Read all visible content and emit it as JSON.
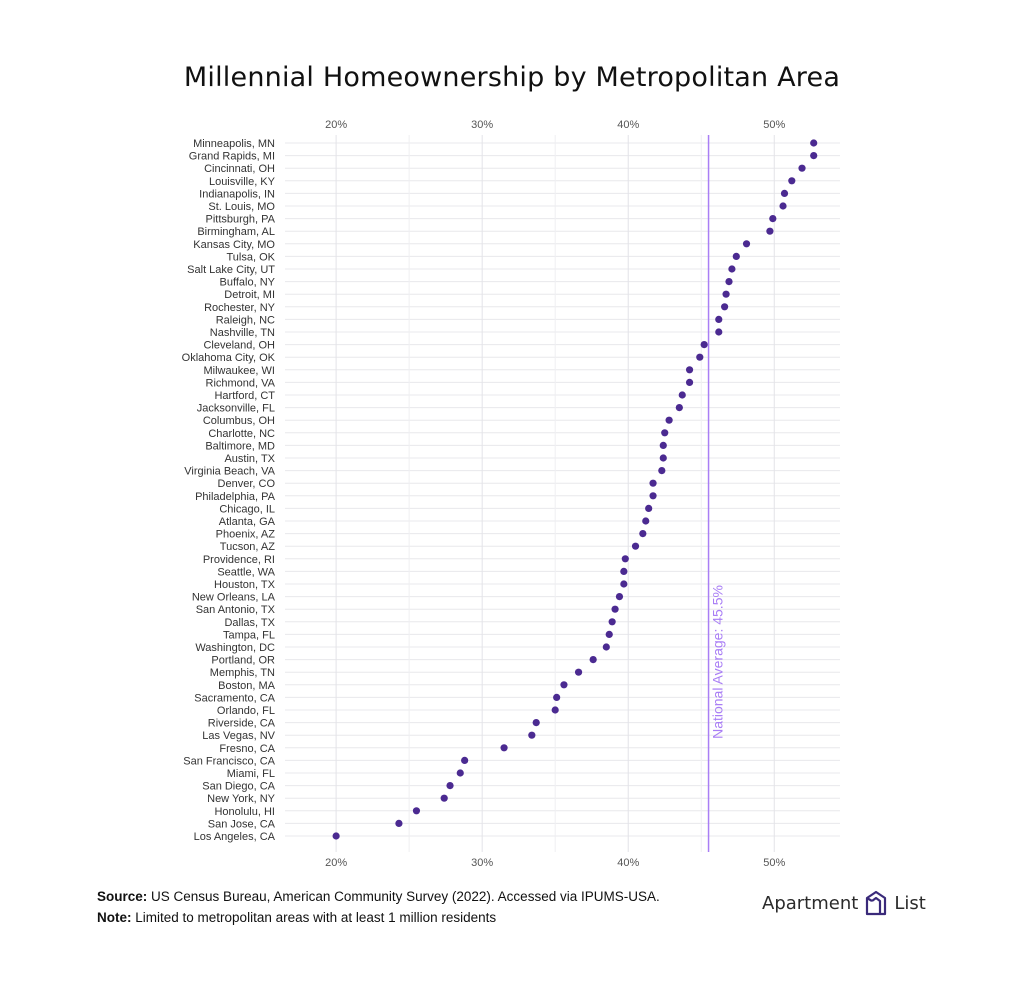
{
  "chart_data": {
    "type": "scatter",
    "title": "Millennial Homeownership by Metropolitan Area",
    "x_ticks": [
      "20%",
      "30%",
      "40%",
      "50%"
    ],
    "x_tick_values": [
      0.2,
      0.3,
      0.4,
      0.5
    ],
    "xlim": [
      0.165,
      0.545
    ],
    "grid": true,
    "reference_line": {
      "value": 0.455,
      "label": "National Average: 45.5%"
    },
    "categories": [
      "Minneapolis, MN",
      "Grand Rapids, MI",
      "Cincinnati, OH",
      "Louisville, KY",
      "Indianapolis, IN",
      "St. Louis, MO",
      "Pittsburgh, PA",
      "Birmingham, AL",
      "Kansas City, MO",
      "Tulsa, OK",
      "Salt Lake City, UT",
      "Buffalo, NY",
      "Detroit, MI",
      "Rochester, NY",
      "Raleigh, NC",
      "Nashville, TN",
      "Cleveland, OH",
      "Oklahoma City, OK",
      "Milwaukee, WI",
      "Richmond, VA",
      "Hartford, CT",
      "Jacksonville, FL",
      "Columbus, OH",
      "Charlotte, NC",
      "Baltimore, MD",
      "Austin, TX",
      "Virginia Beach, VA",
      "Denver, CO",
      "Philadelphia, PA",
      "Chicago, IL",
      "Atlanta, GA",
      "Phoenix, AZ",
      "Tucson, AZ",
      "Providence, RI",
      "Seattle, WA",
      "Houston, TX",
      "New Orleans, LA",
      "San Antonio, TX",
      "Dallas, TX",
      "Tampa, FL",
      "Washington, DC",
      "Portland, OR",
      "Memphis, TN",
      "Boston, MA",
      "Sacramento, CA",
      "Orlando, FL",
      "Riverside, CA",
      "Las Vegas, NV",
      "Fresno, CA",
      "San Francisco, CA",
      "Miami, FL",
      "San Diego, CA",
      "New York, NY",
      "Honolulu, HI",
      "San Jose, CA",
      "Los Angeles, CA"
    ],
    "values": [
      0.527,
      0.527,
      0.519,
      0.512,
      0.507,
      0.506,
      0.499,
      0.497,
      0.481,
      0.474,
      0.471,
      0.469,
      0.467,
      0.466,
      0.462,
      0.462,
      0.452,
      0.449,
      0.442,
      0.442,
      0.437,
      0.435,
      0.428,
      0.425,
      0.424,
      0.424,
      0.423,
      0.417,
      0.417,
      0.414,
      0.412,
      0.41,
      0.405,
      0.398,
      0.397,
      0.397,
      0.394,
      0.391,
      0.389,
      0.387,
      0.385,
      0.376,
      0.366,
      0.356,
      0.351,
      0.35,
      0.337,
      0.334,
      0.315,
      0.288,
      0.285,
      0.278,
      0.274,
      0.255,
      0.243,
      0.2
    ],
    "point_color": "#4b2a91",
    "reference_color": "#a97ef5"
  },
  "footer": {
    "source_label": "Source:",
    "source_text": "US Census Bureau, American Community Survey (2022). Accessed via IPUMS-USA.",
    "note_label": "Note:",
    "note_text": "Limited to metropolitan areas with at least 1 million residents"
  },
  "logo": {
    "text_left": "Apartment",
    "text_right": "List"
  }
}
